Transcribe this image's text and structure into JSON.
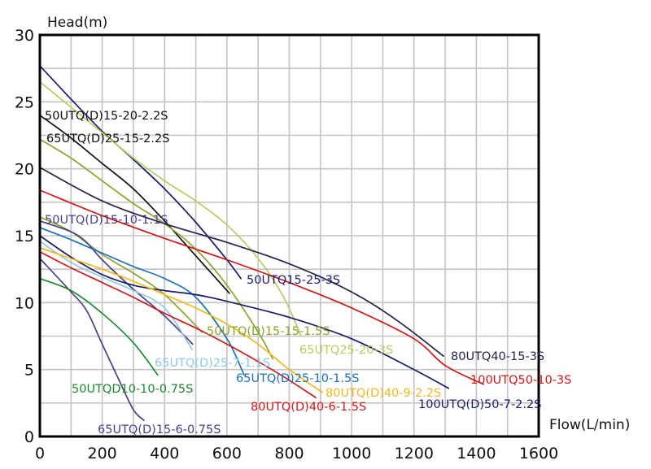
{
  "chart_data": {
    "type": "line",
    "title": "",
    "xlabel": "Flow(L/min)",
    "ylabel": "Head(m)",
    "xlim": [
      0,
      1600
    ],
    "ylim": [
      0,
      30
    ],
    "x_ticks": [
      "0",
      "200",
      "400",
      "600",
      "800",
      "1000",
      "1200",
      "1400",
      "1600"
    ],
    "x_tick_values": [
      0,
      200,
      400,
      600,
      800,
      1000,
      1200,
      1400,
      1600
    ],
    "y_ticks": [
      "0",
      "5",
      "10",
      "15",
      "20",
      "25",
      "30"
    ],
    "y_tick_values": [
      0,
      5,
      10,
      15,
      20,
      25,
      30
    ],
    "grid": true,
    "x_grid_step": 100,
    "y_grid_step": 2.5,
    "series": [
      {
        "name": "50UTQ15-25-3S",
        "color": "#1c1c6e",
        "x": [
          0,
          100,
          200,
          300,
          400,
          500,
          600,
          645
        ],
        "y": [
          27.7,
          25.2,
          22.8,
          20.7,
          18.5,
          16.0,
          13.2,
          11.8
        ]
      },
      {
        "name": "65UTQ25-20-3S",
        "color": "#b5cf5a",
        "x": [
          0,
          100,
          200,
          300,
          400,
          500,
          600,
          700,
          780,
          838
        ],
        "y": [
          26.5,
          24.6,
          22.7,
          20.8,
          19.1,
          17.6,
          15.8,
          13.3,
          10.5,
          7.5
        ]
      },
      {
        "name": "50UTQ(D)15-20-2.2S",
        "color": "#111111",
        "x": [
          0,
          100,
          200,
          300,
          400,
          500,
          608
        ],
        "y": [
          24.0,
          22.3,
          20.4,
          18.5,
          16.1,
          13.5,
          10.7
        ]
      },
      {
        "name": "65UTQ(D)25-15-2.2S",
        "color": "#8aa626",
        "x": [
          0,
          100,
          200,
          300,
          400,
          500,
          600,
          700,
          747
        ],
        "y": [
          22.2,
          20.8,
          19.1,
          17.4,
          15.9,
          14.0,
          11.3,
          7.8,
          5.8
        ]
      },
      {
        "name": "80UTQ40-15-3S",
        "color": "#24244a",
        "x": [
          0,
          200,
          400,
          600,
          800,
          1000,
          1150,
          1295
        ],
        "y": [
          20.1,
          17.6,
          15.9,
          14.5,
          12.9,
          10.8,
          8.6,
          6.0
        ]
      },
      {
        "name": "100UTQ50-10-3S",
        "color": "#d01818",
        "x": [
          0,
          200,
          400,
          600,
          800,
          1000,
          1200,
          1300,
          1423
        ],
        "y": [
          18.4,
          16.5,
          14.8,
          13.2,
          11.5,
          9.6,
          7.3,
          5.3,
          3.9
        ]
      },
      {
        "name": "50UTQ(D)15-15-1.5S",
        "color": "#8aa626",
        "x": [
          0,
          100,
          200,
          300,
          400,
          520
        ],
        "y": [
          16.4,
          15.3,
          13.6,
          12.2,
          10.6,
          7.8
        ]
      },
      {
        "name": "50UTQ(D)15-10-1.1S",
        "color": "#4a3f8f",
        "x": [
          0,
          100,
          150,
          200,
          300,
          400,
          490
        ],
        "y": [
          16.1,
          15.3,
          14.5,
          13.2,
          11.0,
          9.0,
          6.9
        ]
      },
      {
        "name": "65UTQ(D)25-10-1.5S",
        "color": "#1a6fc0",
        "x": [
          0,
          100,
          200,
          300,
          400,
          500,
          600,
          655
        ],
        "y": [
          15.6,
          14.7,
          13.7,
          12.7,
          11.8,
          10.4,
          7.3,
          4.6
        ]
      },
      {
        "name": "100UTQ(D)50-7-2.2S",
        "color": "#1c1c6e",
        "x": [
          0,
          100,
          200,
          300,
          400,
          500,
          600,
          800,
          1000,
          1200,
          1311
        ],
        "y": [
          15.0,
          13.4,
          12.1,
          11.3,
          10.9,
          10.6,
          10.1,
          8.9,
          7.3,
          5.0,
          3.6
        ]
      },
      {
        "name": "65UTQ(D)25-7-1.1S",
        "color": "#8ec7ea",
        "x": [
          0,
          100,
          200,
          300,
          400,
          488
        ],
        "y": [
          14.6,
          13.0,
          11.9,
          10.9,
          9.6,
          6.5
        ]
      },
      {
        "name": "80UTQ(D)40-9-2.2S",
        "color": "#f2b81a",
        "x": [
          0,
          100,
          200,
          300,
          400,
          500,
          600,
          700,
          800,
          906
        ],
        "y": [
          14.1,
          13.3,
          12.5,
          11.6,
          10.6,
          9.6,
          8.4,
          6.9,
          5.0,
          3.3
        ]
      },
      {
        "name": "80UTQ(D)40-6-1.5S",
        "color": "#d01818",
        "x": [
          0,
          100,
          200,
          300,
          400,
          500,
          600,
          700,
          800,
          885
        ],
        "y": [
          13.8,
          12.6,
          11.5,
          10.4,
          9.2,
          8.1,
          6.9,
          5.6,
          4.2,
          2.9
        ]
      },
      {
        "name": "65UTQ(D)15-6-0.75S",
        "color": "#4a3f8f",
        "x": [
          0,
          100,
          150,
          200,
          250,
          300,
          334
        ],
        "y": [
          13.3,
          10.8,
          9.4,
          6.9,
          4.4,
          2.0,
          1.2
        ]
      },
      {
        "name": "50UTQD10-10-0.75S",
        "color": "#1a8a2e",
        "x": [
          0,
          100,
          200,
          300,
          378
        ],
        "y": [
          11.8,
          10.9,
          9.2,
          7.0,
          4.6
        ]
      }
    ]
  }
}
